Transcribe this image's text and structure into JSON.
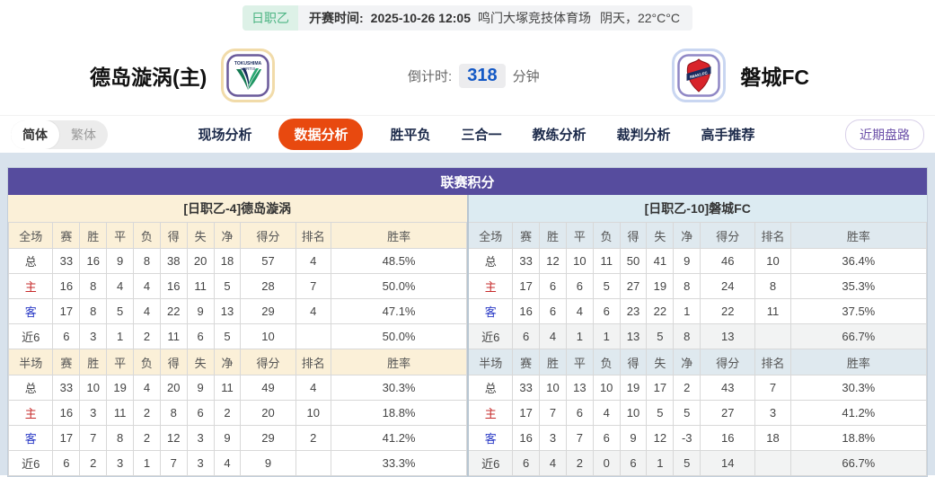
{
  "top_bar": {
    "league_badge": "日职乙",
    "kickoff_label": "开赛时间:",
    "kickoff_time": "2025-10-26 12:05",
    "venue": "鸣门大塚竞技体育场",
    "weather": "阴天，22°C°C"
  },
  "header": {
    "home_team": "德岛漩涡(主)",
    "away_team": "磐城FC",
    "home_logo_alt": "tokushima-vortis-crest",
    "away_logo_alt": "iwaki-fc-crest",
    "countdown_label": "倒计时:",
    "countdown_value": "318",
    "countdown_unit": "分钟"
  },
  "nav": {
    "lang_simplified": "简体",
    "lang_traditional": "繁体",
    "tabs": [
      {
        "label": "现场分析",
        "active": false
      },
      {
        "label": "数据分析",
        "active": true
      },
      {
        "label": "胜平负",
        "active": false
      },
      {
        "label": "三合一",
        "active": false
      },
      {
        "label": "教练分析",
        "active": false
      },
      {
        "label": "裁判分析",
        "active": false
      },
      {
        "label": "高手推荐",
        "active": false
      }
    ],
    "recent_button": "近期盘路"
  },
  "table": {
    "title": "联赛积分",
    "home_header": "[日职乙-4]德岛漩涡",
    "away_header": "[日职乙-10]磐城FC",
    "columns": {
      "full_label": "全场",
      "half_label": "半场",
      "stats": [
        "赛",
        "胜",
        "平",
        "负",
        "得",
        "失",
        "净",
        "得分",
        "排名",
        "胜率"
      ]
    }
  },
  "stats": {
    "home": {
      "full": [
        {
          "label": "总",
          "type": "total",
          "cells": [
            "33",
            "16",
            "9",
            "8",
            "38",
            "20",
            "18",
            "57",
            "4",
            "48.5%"
          ]
        },
        {
          "label": "主",
          "type": "home",
          "cells": [
            "16",
            "8",
            "4",
            "4",
            "16",
            "11",
            "5",
            "28",
            "7",
            "50.0%"
          ]
        },
        {
          "label": "客",
          "type": "away",
          "cells": [
            "17",
            "8",
            "5",
            "4",
            "22",
            "9",
            "13",
            "29",
            "4",
            "47.1%"
          ]
        },
        {
          "label": "近6",
          "type": "recent",
          "cells": [
            "6",
            "3",
            "1",
            "2",
            "11",
            "6",
            "5",
            "10",
            "",
            "50.0%"
          ]
        }
      ],
      "half": [
        {
          "label": "总",
          "type": "total",
          "cells": [
            "33",
            "10",
            "19",
            "4",
            "20",
            "9",
            "11",
            "49",
            "4",
            "30.3%"
          ]
        },
        {
          "label": "主",
          "type": "home",
          "cells": [
            "16",
            "3",
            "11",
            "2",
            "8",
            "6",
            "2",
            "20",
            "10",
            "18.8%"
          ]
        },
        {
          "label": "客",
          "type": "away",
          "cells": [
            "17",
            "7",
            "8",
            "2",
            "12",
            "3",
            "9",
            "29",
            "2",
            "41.2%"
          ]
        },
        {
          "label": "近6",
          "type": "recent",
          "cells": [
            "6",
            "2",
            "3",
            "1",
            "7",
            "3",
            "4",
            "9",
            "",
            "33.3%"
          ]
        }
      ]
    },
    "away": {
      "full": [
        {
          "label": "总",
          "type": "total",
          "cells": [
            "33",
            "12",
            "10",
            "11",
            "50",
            "41",
            "9",
            "46",
            "10",
            "36.4%"
          ]
        },
        {
          "label": "主",
          "type": "home",
          "cells": [
            "17",
            "6",
            "6",
            "5",
            "27",
            "19",
            "8",
            "24",
            "8",
            "35.3%"
          ]
        },
        {
          "label": "客",
          "type": "away",
          "cells": [
            "16",
            "6",
            "4",
            "6",
            "23",
            "22",
            "1",
            "22",
            "11",
            "37.5%"
          ]
        },
        {
          "label": "近6",
          "type": "recent",
          "cells": [
            "6",
            "4",
            "1",
            "1",
            "13",
            "5",
            "8",
            "13",
            "",
            "66.7%"
          ]
        }
      ],
      "half": [
        {
          "label": "总",
          "type": "total",
          "cells": [
            "33",
            "10",
            "13",
            "10",
            "19",
            "17",
            "2",
            "43",
            "7",
            "30.3%"
          ]
        },
        {
          "label": "主",
          "type": "home",
          "cells": [
            "17",
            "7",
            "6",
            "4",
            "10",
            "5",
            "5",
            "27",
            "3",
            "41.2%"
          ]
        },
        {
          "label": "客",
          "type": "away",
          "cells": [
            "16",
            "3",
            "7",
            "6",
            "9",
            "12",
            "-3",
            "16",
            "18",
            "18.8%"
          ]
        },
        {
          "label": "近6",
          "type": "recent",
          "cells": [
            "6",
            "4",
            "2",
            "0",
            "6",
            "1",
            "5",
            "14",
            "",
            "66.7%"
          ]
        }
      ]
    }
  },
  "colors": {
    "title_purple": "#564c9e",
    "active_tab_red": "#e8490f",
    "badge_green": "#4cb483",
    "countdown_blue": "#1358c5",
    "home_panel_cream": "#fbf0d8",
    "away_panel_blue": "#dcebf2",
    "home_row_red": "#c62b2b",
    "away_row_blue": "#2b3bc6",
    "page_bg_blue": "#d8e2ec"
  }
}
